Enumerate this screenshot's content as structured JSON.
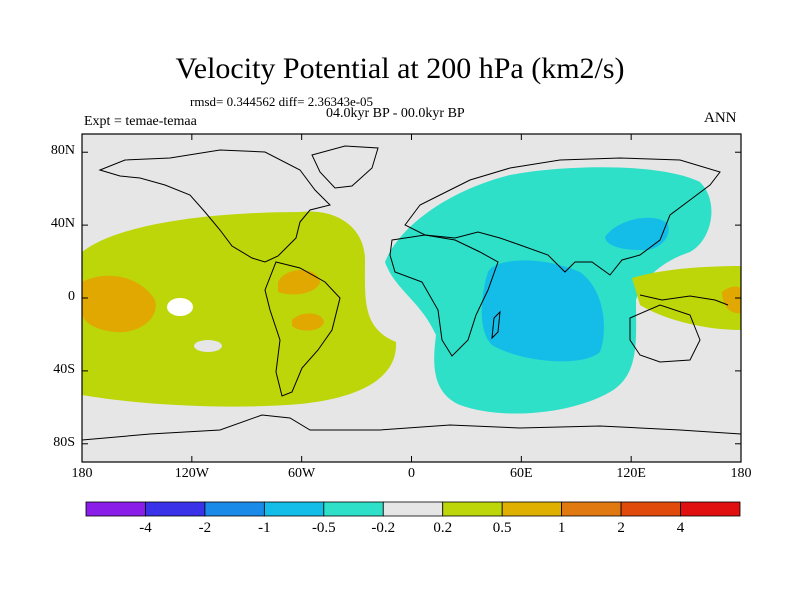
{
  "title": "Velocity Potential at 200 hPa (km2/s)",
  "stats": "rmsd= 0.344562 diff= 2.36343e-05",
  "period": "04.0kyr BP - 00.0kyr BP",
  "experiment": "Expt = temae-temaa",
  "season": "ANN",
  "map": {
    "lat_ticks": [
      "80N",
      "40N",
      "0",
      "40S",
      "80S"
    ],
    "lat_values": [
      80,
      40,
      0,
      -40,
      -80
    ],
    "lon_ticks": [
      "180",
      "120W",
      "60W",
      "0",
      "60E",
      "120E",
      "180"
    ],
    "lon_values": [
      -180,
      -120,
      -60,
      0,
      60,
      120,
      180
    ],
    "lat_range": [
      -90,
      90
    ],
    "lon_range": [
      -180,
      180
    ],
    "background_color": "#e6e6e6",
    "regions": [
      {
        "name": "pacific-americas-positive",
        "class": "0.2 to 0.5",
        "color": "#bcd609"
      },
      {
        "name": "africa-asia-negative",
        "class": "-0.5 to -0.2",
        "color": "#2ee0c8"
      },
      {
        "name": "indian-ocean-negative",
        "class": "-1 to -0.5",
        "color": "#14bde8"
      },
      {
        "name": "west-pacific-positive",
        "class": "0.2 to 0.5",
        "color": "#bcd609"
      },
      {
        "name": "central-pacific-positive",
        "class": "0.5 to 1",
        "color": "#e0a800"
      }
    ]
  },
  "colorbar": {
    "colors": [
      "#8a1de8",
      "#3a32e8",
      "#1a8ae8",
      "#14bde8",
      "#2ee0c8",
      "#e6e6e6",
      "#bcd609",
      "#e0b000",
      "#e07a10",
      "#e04a0a",
      "#e01010"
    ],
    "labels": [
      "-4",
      "-2",
      "-1",
      "-0.5",
      "-0.2",
      "0.2",
      "0.5",
      "1",
      "2",
      "4"
    ]
  }
}
